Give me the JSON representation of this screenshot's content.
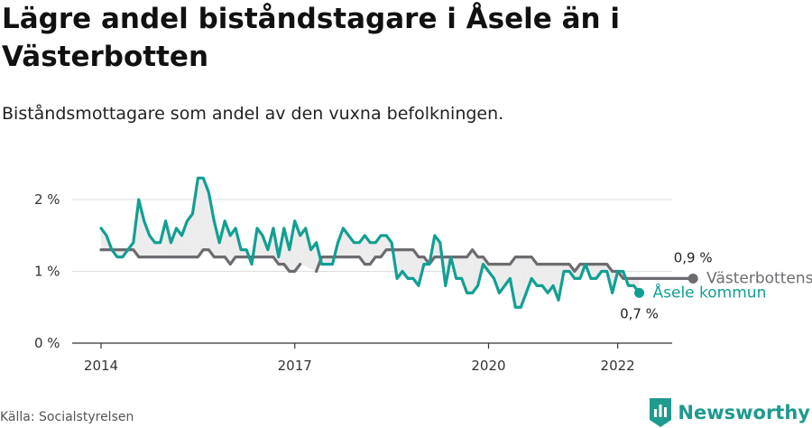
{
  "title": "Lägre andel biståndstagare i Åsele än i Västerbotten",
  "subtitle": "Biståndsmottagare som andel av den vuxna befolkningen.",
  "source": "Källa: Socialstyrelsen",
  "brand": {
    "name": "Newsworthy",
    "icon": "newsworthy-logo-icon"
  },
  "colors": {
    "vasterbotten": "#6e6b70",
    "asele": "#129f93",
    "grid": "#dddddd"
  },
  "chart_data": {
    "type": "line",
    "ylim": [
      0,
      2
    ],
    "y_ticks": [
      {
        "value": 0,
        "label": "0 %"
      },
      {
        "value": 1,
        "label": "1 %"
      },
      {
        "value": 2,
        "label": "2 %"
      }
    ],
    "x_ticks": [
      {
        "value": 2014.0,
        "label": "2014"
      },
      {
        "value": 2017.0,
        "label": "2017"
      },
      {
        "value": 2020.0,
        "label": "2020"
      },
      {
        "value": 2022.0,
        "label": "2022"
      }
    ],
    "grid": true,
    "shade_between_series": true,
    "series": [
      {
        "name": "Västerbottens län",
        "color": "#6e6b70",
        "end_label": "0,9 %",
        "start": "2014-01",
        "values": [
          1.3,
          1.3,
          1.3,
          1.3,
          1.3,
          1.3,
          1.3,
          1.2,
          1.2,
          1.2,
          1.2,
          1.2,
          1.2,
          1.2,
          1.2,
          1.2,
          1.2,
          1.2,
          1.2,
          1.3,
          1.3,
          1.2,
          1.2,
          1.2,
          1.1,
          1.2,
          1.2,
          1.2,
          1.2,
          1.2,
          1.2,
          1.2,
          1.2,
          1.1,
          1.1,
          1.0,
          1.0,
          1.1,
          null,
          null,
          1.0,
          1.2,
          1.2,
          1.2,
          1.2,
          1.2,
          1.2,
          1.2,
          1.2,
          1.1,
          1.1,
          1.2,
          1.2,
          1.3,
          1.3,
          1.3,
          1.3,
          1.3,
          1.3,
          1.2,
          1.2,
          1.1,
          1.2,
          1.2,
          1.2,
          1.2,
          1.2,
          1.2,
          1.2,
          1.3,
          1.2,
          1.2,
          1.1,
          1.1,
          1.1,
          1.1,
          1.1,
          1.2,
          1.2,
          1.2,
          1.2,
          1.1,
          1.1,
          1.1,
          1.1,
          1.1,
          1.1,
          1.1,
          1.0,
          1.1,
          1.1,
          1.1,
          1.1,
          1.1,
          1.1,
          1.0,
          1.0,
          0.9,
          0.9,
          0.9,
          0.9,
          0.9,
          0.9,
          0.9,
          0.9,
          0.9,
          0.9,
          0.9,
          0.9,
          0.9,
          0.9
        ]
      },
      {
        "name": "Åsele kommun",
        "color": "#129f93",
        "end_label": "0,7 %",
        "start": "2014-01",
        "values": [
          1.6,
          1.5,
          1.3,
          1.2,
          1.2,
          1.3,
          1.4,
          2.0,
          1.7,
          1.5,
          1.4,
          1.4,
          1.7,
          1.4,
          1.6,
          1.5,
          1.7,
          1.8,
          2.3,
          2.3,
          2.1,
          1.7,
          1.4,
          1.7,
          1.5,
          1.6,
          1.3,
          1.3,
          1.1,
          1.6,
          1.5,
          1.3,
          1.6,
          1.2,
          1.6,
          1.3,
          1.7,
          1.5,
          1.6,
          1.3,
          1.4,
          1.1,
          1.1,
          1.1,
          1.4,
          1.6,
          1.5,
          1.4,
          1.4,
          1.5,
          1.4,
          1.4,
          1.5,
          1.5,
          1.4,
          0.9,
          1.0,
          0.9,
          0.9,
          0.8,
          1.1,
          1.1,
          1.5,
          1.4,
          0.8,
          1.2,
          0.9,
          0.9,
          0.7,
          0.7,
          0.8,
          1.1,
          1.0,
          0.9,
          0.7,
          0.8,
          0.9,
          0.5,
          0.5,
          0.7,
          0.9,
          0.8,
          0.8,
          0.7,
          0.8,
          0.6,
          1.0,
          1.0,
          0.9,
          0.9,
          1.1,
          0.9,
          0.9,
          1.0,
          1.0,
          0.7,
          1.0,
          1.0,
          0.8,
          0.8,
          0.7
        ]
      }
    ]
  }
}
